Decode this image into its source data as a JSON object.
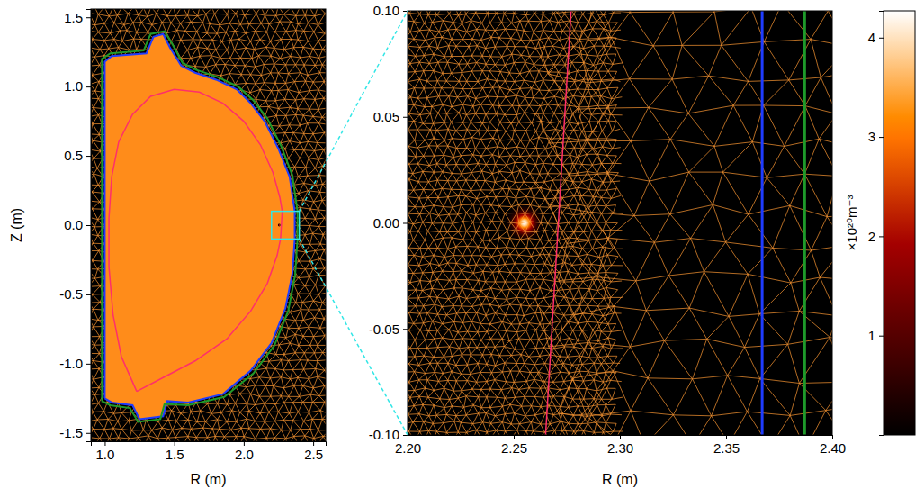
{
  "chart_data": {
    "type": "heatmap",
    "panels": [
      {
        "xlabel": "R (m)",
        "ylabel": "Z (m)",
        "xlim": [
          0.9,
          2.59
        ],
        "ylim": [
          -1.56,
          1.56
        ],
        "xticks": [
          {
            "value": 1,
            "label": "1.0"
          },
          1.5,
          {
            "value": 2,
            "label": "2.0"
          },
          2.5
        ],
        "yticks": [
          -1.5,
          {
            "value": -1,
            "label": "-1.0"
          },
          -0.5,
          {
            "value": 0,
            "label": "0.0"
          },
          0.5,
          {
            "value": 1,
            "label": "1.0"
          },
          1.5
        ]
      },
      {
        "xlabel": "R (m)",
        "xlim": [
          2.2,
          2.4
        ],
        "ylim": [
          -0.1,
          0.1
        ],
        "xticks": [
          {
            "value": 2.2,
            "label": "2.20"
          },
          2.25,
          {
            "value": 2.3,
            "label": "2.30"
          },
          2.35,
          {
            "value": 2.4,
            "label": "2.40"
          }
        ],
        "yticks": [
          {
            "value": -0.1,
            "label": "-0.10"
          },
          -0.05,
          {
            "value": 0,
            "label": "0.00"
          },
          0.05,
          {
            "value": 0.1,
            "label": "0.10"
          }
        ]
      }
    ],
    "curves": [
      {
        "color": "#ff2f6a",
        "R": [
          1.23,
          1.12,
          1.06,
          1.03,
          1.03,
          1.05,
          1.1,
          1.2,
          1.33,
          1.5,
          1.68,
          1.85,
          2.0,
          2.12,
          2.21,
          2.26,
          2.277,
          2.265,
          2.24,
          2.17,
          2.05,
          1.88,
          1.65,
          1.42,
          1.23
        ],
        "Z": [
          -1.2,
          -0.95,
          -0.65,
          -0.3,
          0.05,
          0.35,
          0.6,
          0.8,
          0.93,
          0.98,
          0.96,
          0.88,
          0.75,
          0.58,
          0.38,
          0.2,
          0.1,
          -0.1,
          -0.22,
          -0.42,
          -0.62,
          -0.82,
          -0.98,
          -1.1,
          -1.2
        ]
      },
      {
        "color": "#1f3cff",
        "R": [
          1.0,
          1.0,
          1.05,
          1.3,
          1.35,
          1.42,
          1.47,
          1.55,
          1.65,
          1.8,
          1.95,
          2.05,
          2.15,
          2.25,
          2.33,
          2.367,
          2.367,
          2.35,
          2.3,
          2.2,
          2.05,
          1.85,
          1.6,
          1.45,
          1.42,
          1.25,
          1.2,
          1.05,
          1.0
        ],
        "Z": [
          -1.25,
          1.18,
          1.22,
          1.24,
          1.36,
          1.38,
          1.28,
          1.15,
          1.1,
          1.05,
          0.98,
          0.88,
          0.75,
          0.55,
          0.35,
          0.1,
          -0.1,
          -0.35,
          -0.6,
          -0.85,
          -1.05,
          -1.22,
          -1.28,
          -1.27,
          -1.38,
          -1.4,
          -1.3,
          -1.28,
          -1.25
        ]
      },
      {
        "color": "#1e9a2a",
        "R": [
          0.98,
          0.98,
          1.04,
          1.28,
          1.33,
          1.43,
          1.49,
          1.56,
          1.66,
          1.81,
          1.96,
          2.07,
          2.17,
          2.27,
          2.35,
          2.387,
          2.387,
          2.37,
          2.32,
          2.22,
          2.07,
          1.86,
          1.6,
          1.43,
          1.4,
          1.24,
          1.18,
          1.04,
          0.98
        ],
        "Z": [
          -1.27,
          1.2,
          1.24,
          1.26,
          1.38,
          1.4,
          1.3,
          1.17,
          1.12,
          1.07,
          1.0,
          0.9,
          0.77,
          0.57,
          0.36,
          0.1,
          -0.1,
          -0.36,
          -0.62,
          -0.87,
          -1.07,
          -1.24,
          -1.3,
          -1.29,
          -1.4,
          -1.42,
          -1.32,
          -1.3,
          -1.27
        ]
      }
    ],
    "density_peak": {
      "R": 2.255,
      "Z": 0.0,
      "value": 4.2,
      "radius": 0.009
    },
    "colorbar": {
      "lim": [
        0,
        4.27
      ],
      "ticks": [
        1,
        2,
        3,
        4
      ],
      "label": "×10²⁰m⁻³"
    }
  }
}
